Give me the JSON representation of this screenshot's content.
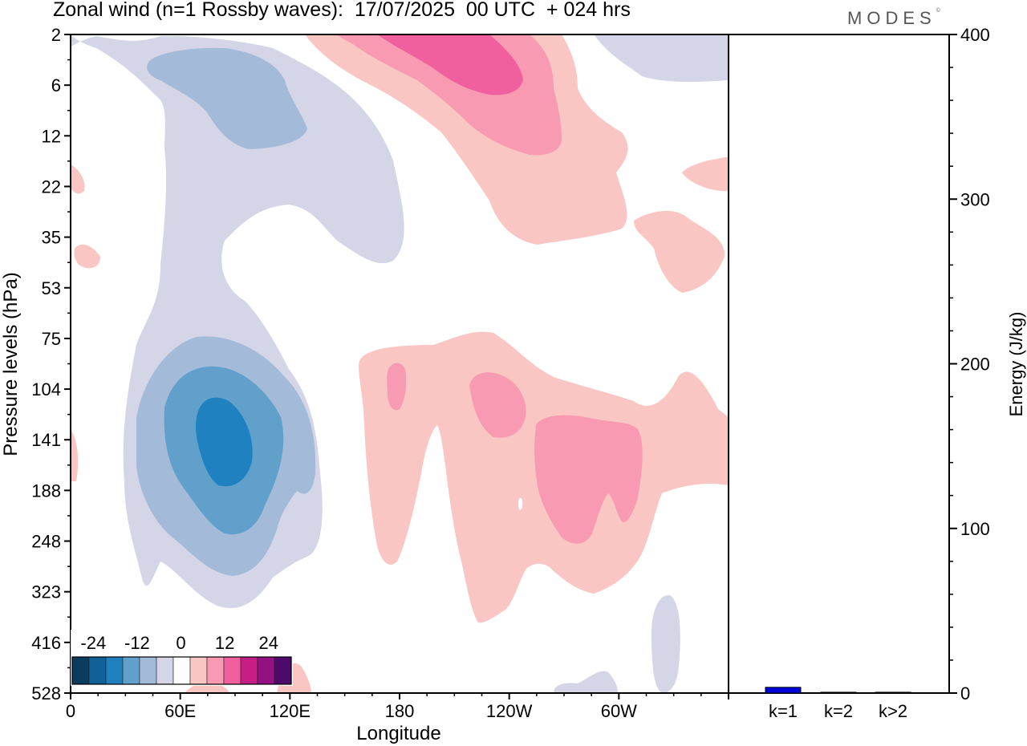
{
  "header": {
    "title": "Zonal wind (n=1 Rossby waves):  17/07/2025  00 UTC  + 024 hrs",
    "logo": "MODES",
    "logo_mark": "©"
  },
  "chart_data": [
    {
      "type": "heatmap",
      "title": "Zonal wind (n=1 Rossby waves):  17/07/2025  00 UTC  + 024 hrs",
      "xlabel": "Longitude",
      "ylabel": "Pressure levels (hPa)",
      "x_ticks": [
        "0",
        "60E",
        "120E",
        "180",
        "120W",
        "60W"
      ],
      "y_ticks": [
        "2",
        "6",
        "12",
        "22",
        "35",
        "53",
        "75",
        "104",
        "141",
        "188",
        "248",
        "323",
        "416",
        "528"
      ],
      "y_scale": "pressure levels, top-down",
      "grid": false,
      "colorbar": {
        "location": "bottom-left",
        "tick_labels": [
          "-24",
          "-12",
          "0",
          "12",
          "24"
        ],
        "levels": [
          -30,
          -25,
          -20,
          -15,
          -10,
          -5,
          0,
          5,
          10,
          15,
          20,
          25,
          30
        ],
        "colors": [
          "#0b3c5d",
          "#10609a",
          "#1f81bf",
          "#62a0cc",
          "#a3bad9",
          "#d4d6e8",
          "#ffffff",
          "#f9c6c3",
          "#f89ab1",
          "#f0609f",
          "#c81c87",
          "#921183",
          "#4e0a6a"
        ]
      },
      "regions": [
        {
          "sign": "negative",
          "peak": "about -17 near 80E, 141 hPa"
        },
        {
          "sign": "negative",
          "peak": "about -8 near 75E, 6 hPa"
        },
        {
          "sign": "positive",
          "peak": "about 12 near 120W, 2-6 hPa"
        },
        {
          "sign": "positive",
          "peak": "about 7 near 80W, 141-188 hPa"
        }
      ]
    },
    {
      "type": "bar",
      "ylabel": "Energy (J/kg)",
      "categories": [
        "k=1",
        "k=2",
        "k>2"
      ],
      "values": [
        3.5,
        0.5,
        0.5
      ],
      "ylim": [
        0,
        400
      ],
      "y_ticks": [
        "0",
        "100",
        "200",
        "300",
        "400"
      ],
      "colors": {
        "k=1": "#0000dd"
      }
    }
  ]
}
